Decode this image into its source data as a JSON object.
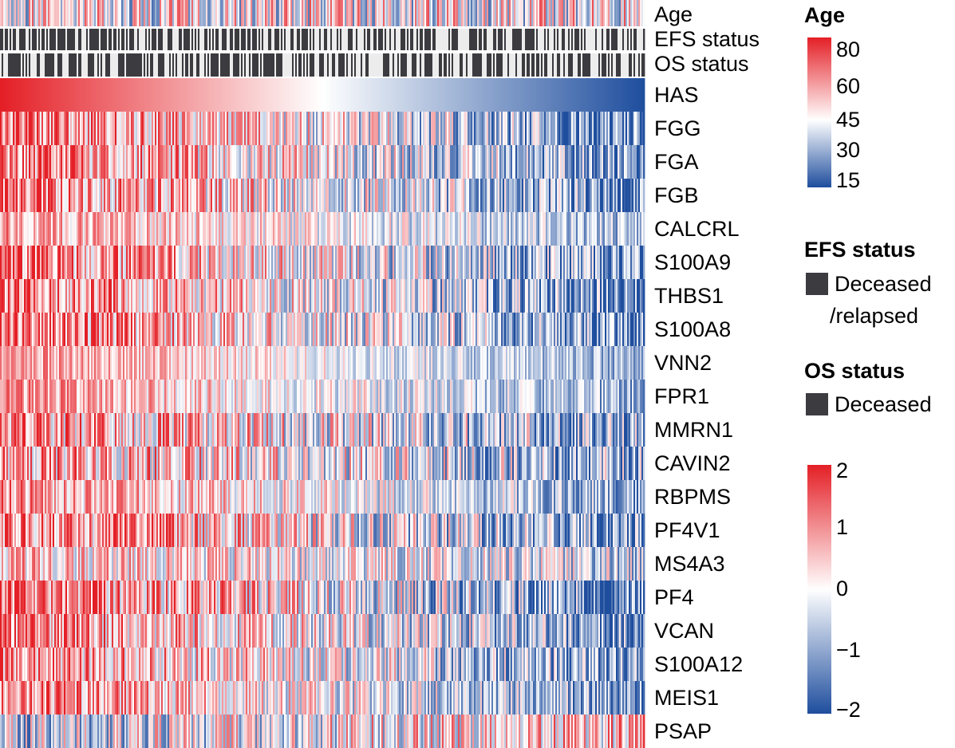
{
  "chart_data": {
    "type": "heatmap",
    "annotation_rows": [
      "Age",
      "EFS status",
      "OS status"
    ],
    "rows": [
      "HAS",
      "FGG",
      "FGA",
      "FGB",
      "CALCRL",
      "S100A9",
      "THBS1",
      "S100A8",
      "VNN2",
      "FPR1",
      "MMRN1",
      "CAVIN2",
      "RBPMS",
      "PF4V1",
      "MS4A3",
      "PF4",
      "VCAN",
      "S100A12",
      "MEIS1",
      "PSAP"
    ],
    "column_order": "samples sorted by HAS score, high to low",
    "color_scale": {
      "min": -2,
      "max": 2,
      "low_color": "#1F4E9E",
      "mid_color": "#FFFFFF",
      "high_color": "#E41F26",
      "ticks": [
        "2",
        "1",
        "0",
        "−1",
        "−2"
      ]
    },
    "legends": {
      "age": {
        "title": "Age",
        "ticks": [
          "80",
          "60",
          "45",
          "30",
          "15"
        ],
        "range": [
          15,
          80
        ],
        "low_color": "#1F4E9E",
        "mid_color": "#FFFFFF",
        "high_color": "#E41F26"
      },
      "efs": {
        "title": "EFS status",
        "item_line1": "Deceased",
        "item_line2": "/relapsed",
        "color": "#3B3B40",
        "background": "#ECECEC"
      },
      "os": {
        "title": "OS status",
        "item": "Deceased",
        "color": "#3B3B40",
        "background": "#ECECEC"
      }
    }
  }
}
